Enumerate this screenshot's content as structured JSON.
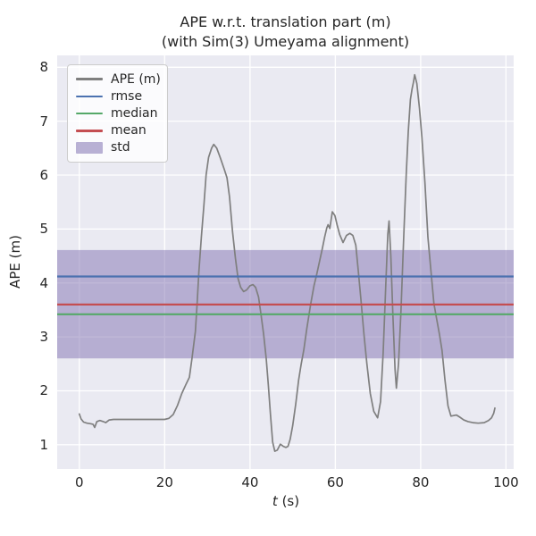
{
  "figure": {
    "title_line1": "APE w.r.t. translation part (m)",
    "title_line2": "(with Sim(3) Umeyama alignment)",
    "bg_color": "#ffffff",
    "axes_bg_color": "#eaeaf2",
    "grid_color": "#ffffff",
    "text_color": "#262626"
  },
  "axes": {
    "xlabel_var": "t",
    "xlabel_rest": " (s)",
    "ylabel": "APE (m)"
  },
  "legend": {
    "items": [
      {
        "label": "APE (m)",
        "color": "#7f7f7f",
        "type": "line"
      },
      {
        "label": "rmse",
        "color": "#4c72b0",
        "type": "line"
      },
      {
        "label": "median",
        "color": "#55a868",
        "type": "line"
      },
      {
        "label": "mean",
        "color": "#c44e52",
        "type": "line"
      },
      {
        "label": "std",
        "color": "#8172b2",
        "type": "patch"
      }
    ]
  },
  "chart_data": {
    "type": "line",
    "title": "APE w.r.t. translation part (m) (with Sim(3) Umeyama alignment)",
    "xlabel": "t (s)",
    "ylabel": "APE (m)",
    "xlim": [
      -5.2,
      101.8
    ],
    "ylim": [
      0.55,
      8.22
    ],
    "xticks": [
      0,
      20,
      40,
      60,
      80,
      100
    ],
    "yticks": [
      1,
      2,
      3,
      4,
      5,
      6,
      7,
      8
    ],
    "grid": true,
    "legend_position": "upper left",
    "stats": {
      "rmse": {
        "value": 4.12,
        "color": "#4c72b0"
      },
      "mean": {
        "value": 3.6,
        "color": "#c44e52"
      },
      "median": {
        "value": 3.42,
        "color": "#55a868"
      },
      "std_band": {
        "range": [
          2.6,
          4.61
        ],
        "color": "#8172b2",
        "alpha": 0.5
      }
    },
    "series": [
      {
        "name": "APE (m)",
        "color": "#7f7f7f",
        "points": [
          [
            0,
            1.57
          ],
          [
            0.4,
            1.48
          ],
          [
            1,
            1.42
          ],
          [
            1.8,
            1.4
          ],
          [
            2.6,
            1.39
          ],
          [
            3.2,
            1.38
          ],
          [
            3.6,
            1.32
          ],
          [
            4.1,
            1.43
          ],
          [
            4.8,
            1.45
          ],
          [
            5.6,
            1.43
          ],
          [
            6.2,
            1.41
          ],
          [
            7,
            1.46
          ],
          [
            8,
            1.47
          ],
          [
            10,
            1.47
          ],
          [
            12,
            1.47
          ],
          [
            14,
            1.47
          ],
          [
            16,
            1.47
          ],
          [
            18,
            1.47
          ],
          [
            20,
            1.47
          ],
          [
            21,
            1.49
          ],
          [
            22,
            1.56
          ],
          [
            23,
            1.73
          ],
          [
            24,
            1.95
          ],
          [
            25,
            2.12
          ],
          [
            25.8,
            2.25
          ],
          [
            26.4,
            2.6
          ],
          [
            27.2,
            3.1
          ],
          [
            27.6,
            3.6
          ],
          [
            28,
            4.2
          ],
          [
            28.6,
            4.85
          ],
          [
            29.2,
            5.45
          ],
          [
            29.7,
            6
          ],
          [
            30.3,
            6.33
          ],
          [
            31,
            6.5
          ],
          [
            31.5,
            6.57
          ],
          [
            32.2,
            6.5
          ],
          [
            33,
            6.33
          ],
          [
            34,
            6.1
          ],
          [
            34.6,
            5.95
          ],
          [
            35.2,
            5.6
          ],
          [
            35.9,
            4.95
          ],
          [
            36.6,
            4.45
          ],
          [
            37.2,
            4.08
          ],
          [
            37.8,
            3.92
          ],
          [
            38.5,
            3.84
          ],
          [
            39.2,
            3.87
          ],
          [
            40,
            3.95
          ],
          [
            40.7,
            3.97
          ],
          [
            41.3,
            3.92
          ],
          [
            42,
            3.74
          ],
          [
            42.6,
            3.4
          ],
          [
            43.2,
            3.05
          ],
          [
            43.8,
            2.6
          ],
          [
            44.3,
            2.1
          ],
          [
            44.8,
            1.55
          ],
          [
            45.3,
            1.05
          ],
          [
            45.8,
            0.88
          ],
          [
            46.4,
            0.9
          ],
          [
            47.1,
            1.01
          ],
          [
            47.8,
            0.97
          ],
          [
            48.4,
            0.95
          ],
          [
            48.9,
            0.97
          ],
          [
            49.4,
            1.1
          ],
          [
            50,
            1.35
          ],
          [
            50.7,
            1.75
          ],
          [
            51.4,
            2.2
          ],
          [
            52,
            2.5
          ],
          [
            52.6,
            2.75
          ],
          [
            53.3,
            3.15
          ],
          [
            54.2,
            3.6
          ],
          [
            55,
            3.95
          ],
          [
            55.6,
            4.15
          ],
          [
            56.3,
            4.4
          ],
          [
            56.9,
            4.62
          ],
          [
            57.5,
            4.85
          ],
          [
            58,
            5.02
          ],
          [
            58.3,
            5.08
          ],
          [
            58.7,
            5.01
          ],
          [
            59.3,
            5.32
          ],
          [
            59.9,
            5.25
          ],
          [
            60.4,
            5.08
          ],
          [
            61,
            4.9
          ],
          [
            61.8,
            4.75
          ],
          [
            62.6,
            4.88
          ],
          [
            63.4,
            4.92
          ],
          [
            64.1,
            4.88
          ],
          [
            64.8,
            4.7
          ],
          [
            65.4,
            4.2
          ],
          [
            66,
            3.7
          ],
          [
            66.7,
            3.05
          ],
          [
            67.4,
            2.5
          ],
          [
            68.2,
            1.95
          ],
          [
            69,
            1.62
          ],
          [
            69.9,
            1.5
          ],
          [
            70.6,
            1.8
          ],
          [
            71.2,
            2.7
          ],
          [
            71.8,
            3.9
          ],
          [
            72.3,
            4.9
          ],
          [
            72.6,
            5.15
          ],
          [
            73,
            4.5
          ],
          [
            73.5,
            3.4
          ],
          [
            74,
            2.4
          ],
          [
            74.3,
            2.05
          ],
          [
            74.8,
            2.5
          ],
          [
            75.4,
            3.5
          ],
          [
            76,
            4.8
          ],
          [
            76.6,
            6
          ],
          [
            77.1,
            6.8
          ],
          [
            77.6,
            7.4
          ],
          [
            78,
            7.6
          ],
          [
            78.3,
            7.72
          ],
          [
            78.6,
            7.86
          ],
          [
            79.1,
            7.7
          ],
          [
            79.7,
            7.25
          ],
          [
            80.3,
            6.7
          ],
          [
            81,
            5.85
          ],
          [
            81.7,
            4.85
          ],
          [
            82.5,
            4.15
          ],
          [
            83.1,
            3.62
          ],
          [
            83.7,
            3.35
          ],
          [
            84.4,
            3.05
          ],
          [
            85,
            2.75
          ],
          [
            85.7,
            2.2
          ],
          [
            86.4,
            1.72
          ],
          [
            87.1,
            1.53
          ],
          [
            87.7,
            1.54
          ],
          [
            88.4,
            1.55
          ],
          [
            89.2,
            1.51
          ],
          [
            90.1,
            1.46
          ],
          [
            91.1,
            1.43
          ],
          [
            92.2,
            1.41
          ],
          [
            93.5,
            1.4
          ],
          [
            94.9,
            1.41
          ],
          [
            95.9,
            1.45
          ],
          [
            96.6,
            1.5
          ],
          [
            97.1,
            1.58
          ],
          [
            97.4,
            1.68
          ]
        ]
      }
    ]
  }
}
